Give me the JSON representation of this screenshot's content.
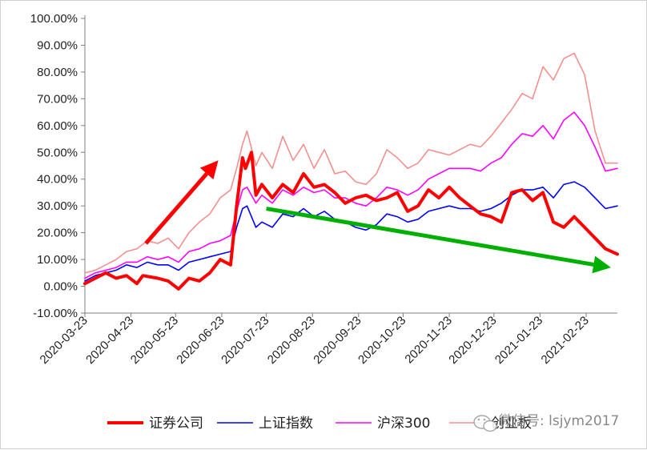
{
  "chart_data": {
    "type": "line",
    "title": "",
    "xlabel": "",
    "ylabel": "",
    "ylim": [
      -0.1,
      1.0
    ],
    "ytick_labels": [
      "-10.00%",
      "0.00%",
      "10.00%",
      "20.00%",
      "30.00%",
      "40.00%",
      "50.00%",
      "60.00%",
      "70.00%",
      "80.00%",
      "90.00%",
      "100.00%"
    ],
    "ytick_values": [
      -0.1,
      0.0,
      0.1,
      0.2,
      0.3,
      0.4,
      0.5,
      0.6,
      0.7,
      0.8,
      0.9,
      1.0
    ],
    "x_range": [
      "2020-03-23",
      "2021-03-16"
    ],
    "xtick_labels": [
      "2020-03-23",
      "2020-04-23",
      "2020-05-23",
      "2020-06-23",
      "2020-07-23",
      "2020-08-23",
      "2020-09-23",
      "2020-10-23",
      "2020-11-23",
      "2020-12-23",
      "2021-01-23",
      "2021-02-23"
    ],
    "grid": false,
    "legend_position": "bottom",
    "series": [
      {
        "name": "证券公司",
        "color": "#ff0000",
        "width": 4,
        "points": [
          [
            "2020-03-23",
            0.01
          ],
          [
            "2020-03-30",
            0.03
          ],
          [
            "2020-04-06",
            0.05
          ],
          [
            "2020-04-13",
            0.03
          ],
          [
            "2020-04-20",
            0.04
          ],
          [
            "2020-04-27",
            0.01
          ],
          [
            "2020-05-01",
            0.04
          ],
          [
            "2020-05-11",
            0.03
          ],
          [
            "2020-05-18",
            0.02
          ],
          [
            "2020-05-25",
            -0.01
          ],
          [
            "2020-06-01",
            0.03
          ],
          [
            "2020-06-08",
            0.02
          ],
          [
            "2020-06-15",
            0.05
          ],
          [
            "2020-06-22",
            0.1
          ],
          [
            "2020-06-29",
            0.08
          ],
          [
            "2020-07-03",
            0.3
          ],
          [
            "2020-07-07",
            0.48
          ],
          [
            "2020-07-09",
            0.44
          ],
          [
            "2020-07-13",
            0.5
          ],
          [
            "2020-07-16",
            0.34
          ],
          [
            "2020-07-20",
            0.38
          ],
          [
            "2020-07-27",
            0.33
          ],
          [
            "2020-08-03",
            0.38
          ],
          [
            "2020-08-10",
            0.35
          ],
          [
            "2020-08-17",
            0.42
          ],
          [
            "2020-08-24",
            0.37
          ],
          [
            "2020-08-31",
            0.38
          ],
          [
            "2020-09-07",
            0.35
          ],
          [
            "2020-09-14",
            0.31
          ],
          [
            "2020-09-21",
            0.33
          ],
          [
            "2020-09-28",
            0.34
          ],
          [
            "2020-10-05",
            0.32
          ],
          [
            "2020-10-12",
            0.33
          ],
          [
            "2020-10-19",
            0.35
          ],
          [
            "2020-10-26",
            0.28
          ],
          [
            "2020-11-02",
            0.3
          ],
          [
            "2020-11-09",
            0.36
          ],
          [
            "2020-11-16",
            0.33
          ],
          [
            "2020-11-23",
            0.37
          ],
          [
            "2020-11-30",
            0.33
          ],
          [
            "2020-12-07",
            0.3
          ],
          [
            "2020-12-14",
            0.27
          ],
          [
            "2020-12-21",
            0.26
          ],
          [
            "2020-12-28",
            0.24
          ],
          [
            "2021-01-04",
            0.35
          ],
          [
            "2021-01-11",
            0.36
          ],
          [
            "2021-01-18",
            0.32
          ],
          [
            "2021-01-25",
            0.35
          ],
          [
            "2021-02-01",
            0.24
          ],
          [
            "2021-02-08",
            0.22
          ],
          [
            "2021-02-15",
            0.26
          ],
          [
            "2021-02-22",
            0.22
          ],
          [
            "2021-03-01",
            0.18
          ],
          [
            "2021-03-08",
            0.14
          ],
          [
            "2021-03-16",
            0.12
          ]
        ]
      },
      {
        "name": "上证指数",
        "color": "#0000ff",
        "width": 1.6,
        "points": [
          [
            "2020-03-23",
            0.02
          ],
          [
            "2020-03-30",
            0.04
          ],
          [
            "2020-04-06",
            0.05
          ],
          [
            "2020-04-13",
            0.06
          ],
          [
            "2020-04-20",
            0.08
          ],
          [
            "2020-04-27",
            0.07
          ],
          [
            "2020-05-04",
            0.09
          ],
          [
            "2020-05-11",
            0.08
          ],
          [
            "2020-05-18",
            0.08
          ],
          [
            "2020-05-25",
            0.06
          ],
          [
            "2020-06-01",
            0.09
          ],
          [
            "2020-06-08",
            0.1
          ],
          [
            "2020-06-15",
            0.11
          ],
          [
            "2020-06-22",
            0.12
          ],
          [
            "2020-06-29",
            0.13
          ],
          [
            "2020-07-03",
            0.22
          ],
          [
            "2020-07-07",
            0.29
          ],
          [
            "2020-07-10",
            0.3
          ],
          [
            "2020-07-16",
            0.22
          ],
          [
            "2020-07-20",
            0.24
          ],
          [
            "2020-07-27",
            0.22
          ],
          [
            "2020-08-03",
            0.27
          ],
          [
            "2020-08-10",
            0.26
          ],
          [
            "2020-08-17",
            0.29
          ],
          [
            "2020-08-24",
            0.26
          ],
          [
            "2020-08-31",
            0.28
          ],
          [
            "2020-09-07",
            0.25
          ],
          [
            "2020-09-14",
            0.24
          ],
          [
            "2020-09-21",
            0.22
          ],
          [
            "2020-09-28",
            0.21
          ],
          [
            "2020-10-05",
            0.23
          ],
          [
            "2020-10-12",
            0.27
          ],
          [
            "2020-10-19",
            0.26
          ],
          [
            "2020-10-26",
            0.24
          ],
          [
            "2020-11-02",
            0.25
          ],
          [
            "2020-11-09",
            0.28
          ],
          [
            "2020-11-16",
            0.29
          ],
          [
            "2020-11-23",
            0.3
          ],
          [
            "2020-11-30",
            0.29
          ],
          [
            "2020-12-07",
            0.29
          ],
          [
            "2020-12-14",
            0.28
          ],
          [
            "2020-12-21",
            0.29
          ],
          [
            "2020-12-28",
            0.31
          ],
          [
            "2021-01-04",
            0.34
          ],
          [
            "2021-01-11",
            0.36
          ],
          [
            "2021-01-18",
            0.36
          ],
          [
            "2021-01-25",
            0.37
          ],
          [
            "2021-02-01",
            0.33
          ],
          [
            "2021-02-08",
            0.38
          ],
          [
            "2021-02-15",
            0.39
          ],
          [
            "2021-02-22",
            0.37
          ],
          [
            "2021-03-01",
            0.33
          ],
          [
            "2021-03-08",
            0.29
          ],
          [
            "2021-03-16",
            0.3
          ]
        ]
      },
      {
        "name": "沪深300",
        "color": "#ff00ff",
        "width": 1.6,
        "points": [
          [
            "2020-03-23",
            0.03
          ],
          [
            "2020-03-30",
            0.05
          ],
          [
            "2020-04-06",
            0.06
          ],
          [
            "2020-04-13",
            0.07
          ],
          [
            "2020-04-20",
            0.09
          ],
          [
            "2020-04-27",
            0.09
          ],
          [
            "2020-05-04",
            0.11
          ],
          [
            "2020-05-11",
            0.1
          ],
          [
            "2020-05-18",
            0.11
          ],
          [
            "2020-05-25",
            0.09
          ],
          [
            "2020-06-01",
            0.13
          ],
          [
            "2020-06-08",
            0.14
          ],
          [
            "2020-06-15",
            0.16
          ],
          [
            "2020-06-22",
            0.17
          ],
          [
            "2020-06-29",
            0.19
          ],
          [
            "2020-07-03",
            0.28
          ],
          [
            "2020-07-07",
            0.36
          ],
          [
            "2020-07-10",
            0.37
          ],
          [
            "2020-07-16",
            0.31
          ],
          [
            "2020-07-20",
            0.34
          ],
          [
            "2020-07-27",
            0.31
          ],
          [
            "2020-08-03",
            0.36
          ],
          [
            "2020-08-10",
            0.34
          ],
          [
            "2020-08-17",
            0.37
          ],
          [
            "2020-08-24",
            0.35
          ],
          [
            "2020-08-31",
            0.36
          ],
          [
            "2020-09-07",
            0.33
          ],
          [
            "2020-09-14",
            0.33
          ],
          [
            "2020-09-21",
            0.31
          ],
          [
            "2020-09-28",
            0.3
          ],
          [
            "2020-10-05",
            0.33
          ],
          [
            "2020-10-12",
            0.37
          ],
          [
            "2020-10-19",
            0.36
          ],
          [
            "2020-10-26",
            0.34
          ],
          [
            "2020-11-02",
            0.36
          ],
          [
            "2020-11-09",
            0.4
          ],
          [
            "2020-11-16",
            0.42
          ],
          [
            "2020-11-23",
            0.44
          ],
          [
            "2020-11-30",
            0.44
          ],
          [
            "2020-12-07",
            0.44
          ],
          [
            "2020-12-14",
            0.43
          ],
          [
            "2020-12-21",
            0.46
          ],
          [
            "2020-12-28",
            0.48
          ],
          [
            "2021-01-04",
            0.53
          ],
          [
            "2021-01-11",
            0.57
          ],
          [
            "2021-01-18",
            0.56
          ],
          [
            "2021-01-25",
            0.6
          ],
          [
            "2021-02-01",
            0.55
          ],
          [
            "2021-02-08",
            0.62
          ],
          [
            "2021-02-15",
            0.65
          ],
          [
            "2021-02-22",
            0.6
          ],
          [
            "2021-03-01",
            0.52
          ],
          [
            "2021-03-08",
            0.43
          ],
          [
            "2021-03-16",
            0.44
          ]
        ]
      },
      {
        "name": "创业板",
        "color": "#f4908e",
        "width": 1.6,
        "points": [
          [
            "2020-03-23",
            0.05
          ],
          [
            "2020-03-30",
            0.06
          ],
          [
            "2020-04-06",
            0.08
          ],
          [
            "2020-04-13",
            0.1
          ],
          [
            "2020-04-20",
            0.13
          ],
          [
            "2020-04-27",
            0.14
          ],
          [
            "2020-05-04",
            0.17
          ],
          [
            "2020-05-11",
            0.16
          ],
          [
            "2020-05-18",
            0.18
          ],
          [
            "2020-05-25",
            0.14
          ],
          [
            "2020-06-01",
            0.2
          ],
          [
            "2020-06-08",
            0.24
          ],
          [
            "2020-06-15",
            0.27
          ],
          [
            "2020-06-22",
            0.33
          ],
          [
            "2020-06-29",
            0.36
          ],
          [
            "2020-07-03",
            0.44
          ],
          [
            "2020-07-07",
            0.53
          ],
          [
            "2020-07-10",
            0.58
          ],
          [
            "2020-07-16",
            0.45
          ],
          [
            "2020-07-20",
            0.5
          ],
          [
            "2020-07-27",
            0.44
          ],
          [
            "2020-08-03",
            0.56
          ],
          [
            "2020-08-10",
            0.47
          ],
          [
            "2020-08-17",
            0.53
          ],
          [
            "2020-08-24",
            0.44
          ],
          [
            "2020-08-31",
            0.51
          ],
          [
            "2020-09-07",
            0.42
          ],
          [
            "2020-09-14",
            0.43
          ],
          [
            "2020-09-21",
            0.39
          ],
          [
            "2020-09-28",
            0.38
          ],
          [
            "2020-10-05",
            0.42
          ],
          [
            "2020-10-12",
            0.51
          ],
          [
            "2020-10-19",
            0.48
          ],
          [
            "2020-10-26",
            0.44
          ],
          [
            "2020-11-02",
            0.46
          ],
          [
            "2020-11-09",
            0.51
          ],
          [
            "2020-11-16",
            0.5
          ],
          [
            "2020-11-23",
            0.49
          ],
          [
            "2020-11-30",
            0.51
          ],
          [
            "2020-12-07",
            0.53
          ],
          [
            "2020-12-14",
            0.52
          ],
          [
            "2020-12-21",
            0.56
          ],
          [
            "2020-12-28",
            0.61
          ],
          [
            "2021-01-04",
            0.66
          ],
          [
            "2021-01-11",
            0.72
          ],
          [
            "2021-01-18",
            0.7
          ],
          [
            "2021-01-25",
            0.82
          ],
          [
            "2021-02-01",
            0.77
          ],
          [
            "2021-02-08",
            0.85
          ],
          [
            "2021-02-15",
            0.87
          ],
          [
            "2021-02-22",
            0.79
          ],
          [
            "2021-03-01",
            0.58
          ],
          [
            "2021-03-08",
            0.46
          ],
          [
            "2021-03-16",
            0.46
          ]
        ]
      }
    ],
    "annotations": [
      {
        "kind": "arrow",
        "color": "#ff0000",
        "from": [
          "2020-05-03",
          0.16
        ],
        "to": [
          "2020-06-25",
          0.47
        ]
      },
      {
        "kind": "arrow",
        "color": "#00b000",
        "from": [
          "2020-07-23",
          0.29
        ],
        "to": [
          "2021-03-16",
          0.07
        ]
      }
    ]
  },
  "watermark": {
    "icon": "wechat-logo",
    "text": "微信号: lsjym2017"
  }
}
